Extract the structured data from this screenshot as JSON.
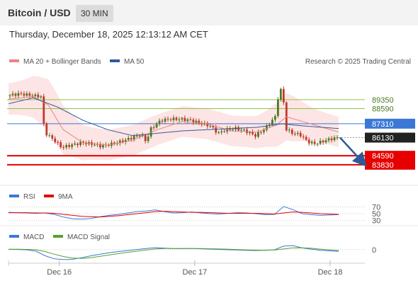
{
  "header": {
    "title": "Bitcoin / USD",
    "timeframe": "30 MIN"
  },
  "datetime": "Thursday, December 18, 2025 12:13:12 AM CET",
  "legend": {
    "ma20": "MA 20 + Bollinger Bands",
    "ma50": "MA 50",
    "credit": "Research © 2025 Trading Central",
    "rsi": "RSI",
    "rsi_ma": "9MA",
    "macd": "MACD",
    "macd_signal": "MACD Signal"
  },
  "colors": {
    "resistance": "#8bc34a",
    "pivot": "#3a78d8",
    "support": "#e60000",
    "last": "#222222",
    "ma20": "#f08080",
    "ma50": "#2e5a9c",
    "band": "#fde0e0",
    "up": "#4a7a1e",
    "down": "#c0392b",
    "arrow": "#2e5a9c",
    "macd_signal": "#5aa02c"
  },
  "chart_data": {
    "type": "line",
    "price_panel": {
      "symbol": "Bitcoin / USD",
      "timeframe": "30 MIN",
      "ylim": [
        82500,
        91500
      ],
      "levels": [
        {
          "name": "resistance-2",
          "value": 89350,
          "label": "89350",
          "kind": "resistance"
        },
        {
          "name": "resistance-1",
          "value": 88590,
          "label": "88590",
          "kind": "resistance"
        },
        {
          "name": "pivot",
          "value": 87310,
          "label": "87310",
          "kind": "pivot"
        },
        {
          "name": "last-price",
          "value": 86130,
          "label": "86130",
          "kind": "last"
        },
        {
          "name": "support-1",
          "value": 84590,
          "label": "84590",
          "kind": "support"
        },
        {
          "name": "support-2",
          "value": 83830,
          "label": "83830",
          "kind": "support"
        }
      ],
      "x_ticks": [
        {
          "label": "Dec 16",
          "index": 18
        },
        {
          "label": "Dec 17",
          "index": 66
        },
        {
          "label": "Dec 18",
          "index": 114
        }
      ],
      "candles_count": 117,
      "price_path": [
        [
          0,
          89680
        ],
        [
          5,
          89850
        ],
        [
          10,
          89700
        ],
        [
          14,
          89600
        ],
        [
          15,
          86600
        ],
        [
          19,
          85900
        ],
        [
          22,
          85300
        ],
        [
          26,
          85500
        ],
        [
          30,
          85700
        ],
        [
          34,
          85600
        ],
        [
          38,
          85400
        ],
        [
          42,
          85600
        ],
        [
          46,
          85800
        ],
        [
          50,
          86100
        ],
        [
          54,
          86400
        ],
        [
          56,
          85800
        ],
        [
          58,
          86900
        ],
        [
          62,
          87600
        ],
        [
          66,
          87700
        ],
        [
          70,
          87700
        ],
        [
          74,
          87600
        ],
        [
          78,
          87350
        ],
        [
          82,
          87100
        ],
        [
          85,
          86500
        ],
        [
          88,
          86800
        ],
        [
          92,
          86900
        ],
        [
          96,
          86700
        ],
        [
          100,
          86300
        ],
        [
          104,
          86900
        ],
        [
          108,
          87900
        ],
        [
          109,
          89400
        ],
        [
          111,
          90600
        ],
        [
          112,
          86900
        ],
        [
          115,
          86500
        ],
        [
          118,
          86400
        ],
        [
          121,
          85800
        ],
        [
          124,
          85600
        ],
        [
          127,
          85800
        ],
        [
          130,
          86000
        ],
        [
          133,
          86130
        ]
      ],
      "ma20_path": [
        [
          0,
          89400
        ],
        [
          10,
          89600
        ],
        [
          16,
          88900
        ],
        [
          22,
          86800
        ],
        [
          30,
          85700
        ],
        [
          40,
          85500
        ],
        [
          50,
          85900
        ],
        [
          60,
          86800
        ],
        [
          70,
          87500
        ],
        [
          80,
          87300
        ],
        [
          90,
          86700
        ],
        [
          100,
          86600
        ],
        [
          108,
          87200
        ],
        [
          112,
          87900
        ],
        [
          120,
          87400
        ],
        [
          133,
          86600
        ]
      ],
      "ma50_path": [
        [
          0,
          89000
        ],
        [
          10,
          89500
        ],
        [
          20,
          88700
        ],
        [
          30,
          87600
        ],
        [
          40,
          86800
        ],
        [
          50,
          86300
        ],
        [
          60,
          86500
        ],
        [
          70,
          86700
        ],
        [
          80,
          86800
        ],
        [
          90,
          86900
        ],
        [
          100,
          87000
        ],
        [
          110,
          87300
        ],
        [
          120,
          87100
        ],
        [
          133,
          86900
        ]
      ],
      "forecast": {
        "from": 86130,
        "to": 84100,
        "direction": "down"
      }
    },
    "rsi_panel": {
      "ylim": [
        25,
        75
      ],
      "levels": [
        70,
        50,
        30
      ],
      "series": [
        {
          "name": "RSI",
          "values": [
            54,
            53,
            52,
            51,
            52,
            48,
            40,
            35,
            34,
            36,
            41,
            45,
            48,
            52,
            56,
            58,
            61,
            56,
            52,
            53,
            55,
            52,
            50,
            49,
            51,
            53,
            52,
            50,
            47,
            48,
            71,
            62,
            50,
            47,
            45,
            46,
            47
          ]
        },
        {
          "name": "9MA",
          "values": [
            53,
            53,
            53,
            52,
            52,
            51,
            48,
            45,
            42,
            41,
            40,
            42,
            44,
            47,
            50,
            53,
            56,
            57,
            56,
            55,
            54,
            54,
            53,
            52,
            51,
            51,
            51,
            51,
            50,
            49,
            52,
            55,
            54,
            52,
            50,
            49,
            48
          ]
        }
      ]
    },
    "macd_panel": {
      "ylim": [
        -1400,
        900
      ],
      "zero_label": "0",
      "series": [
        {
          "name": "MACD",
          "values": [
            30,
            20,
            -30,
            -200,
            -800,
            -1200,
            -1300,
            -1250,
            -1050,
            -800,
            -600,
            -420,
            -250,
            -120,
            20,
            150,
            250,
            180,
            130,
            140,
            150,
            110,
            60,
            20,
            -20,
            -60,
            -100,
            -120,
            -80,
            -30,
            450,
            520,
            220,
            60,
            -80,
            -160,
            -220
          ]
        },
        {
          "name": "MACD Signal",
          "values": [
            40,
            40,
            30,
            -20,
            -250,
            -600,
            -900,
            -1100,
            -1150,
            -1050,
            -880,
            -700,
            -520,
            -350,
            -200,
            -60,
            80,
            140,
            150,
            150,
            150,
            140,
            110,
            80,
            40,
            0,
            -40,
            -70,
            -80,
            -60,
            80,
            220,
            240,
            170,
            60,
            -40,
            -120
          ]
        }
      ]
    }
  }
}
